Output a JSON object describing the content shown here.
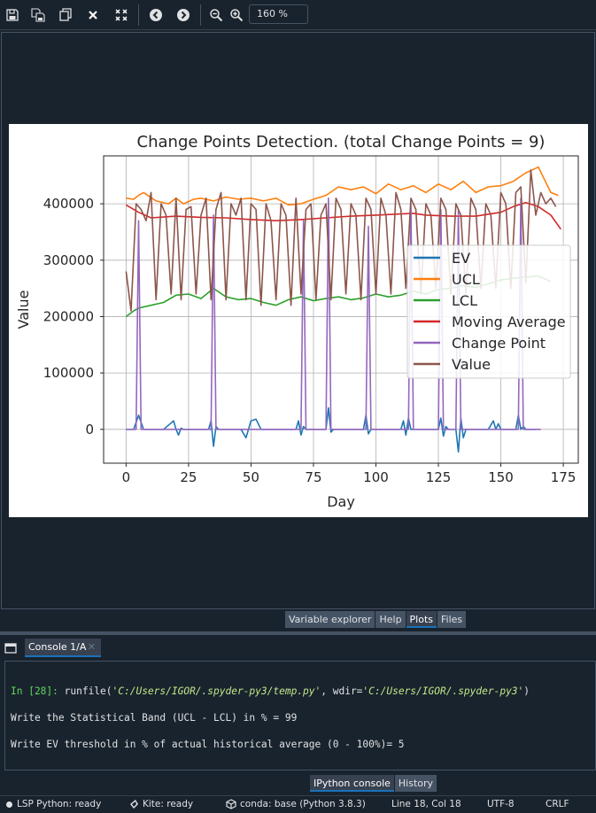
{
  "toolbar": {
    "buttons": [
      "save-icon",
      "save-all-icon",
      "copy-icon",
      "close-icon",
      "close-all-icon",
      "back-icon",
      "forward-icon",
      "zoom-out-icon",
      "zoom-in-icon"
    ],
    "zoom": "160 %"
  },
  "chart_data": {
    "type": "line",
    "title": "Change Points Detection. (total Change Points = 9)",
    "xlabel": "Day",
    "ylabel": "Value",
    "xlim": [
      -9,
      181
    ],
    "ylim": [
      -60000,
      485000
    ],
    "xticks": [
      0,
      25,
      50,
      75,
      100,
      125,
      150,
      175
    ],
    "yticks": [
      0,
      100000,
      200000,
      300000,
      400000
    ],
    "ytick_labels": [
      "0",
      "100000",
      "200000",
      "300000",
      "400000"
    ],
    "grid": true,
    "legend_position": "right",
    "series": [
      {
        "name": "EV",
        "color": "#1f77b4",
        "x": [
          0,
          3,
          5,
          7,
          9,
          15,
          19,
          20,
          21,
          22,
          23,
          25,
          33,
          34,
          35,
          36,
          37,
          38,
          46,
          48,
          50,
          52,
          54,
          56,
          68,
          69,
          70,
          71,
          72,
          80,
          81,
          82,
          83,
          84,
          88,
          95,
          96,
          97,
          98,
          99,
          110,
          111,
          112,
          113,
          114,
          115,
          125,
          126,
          127,
          128,
          129,
          132,
          133,
          134,
          135,
          136,
          145,
          147,
          148,
          149,
          150,
          156,
          157,
          158,
          159,
          160,
          164
        ],
        "y": [
          0,
          0,
          25000,
          0,
          0,
          0,
          15000,
          0,
          -10000,
          2000,
          0,
          0,
          0,
          15000,
          -30000,
          5000,
          0,
          0,
          0,
          -15000,
          15000,
          18000,
          0,
          0,
          0,
          15000,
          -10000,
          5000,
          0,
          0,
          38000,
          -5000,
          0,
          0,
          0,
          0,
          25000,
          -8000,
          0,
          0,
          0,
          15000,
          -10000,
          20000,
          0,
          0,
          0,
          20000,
          -12000,
          5000,
          0,
          0,
          -40000,
          20000,
          -15000,
          0,
          0,
          15000,
          0,
          10000,
          0,
          0,
          25000,
          0,
          5000,
          0,
          0
        ]
      },
      {
        "name": "UCL",
        "color": "#ff7f0e",
        "x": [
          0,
          3,
          5,
          7,
          12,
          17,
          20,
          23,
          27,
          30,
          35,
          40,
          45,
          50,
          55,
          60,
          65,
          70,
          75,
          80,
          85,
          90,
          95,
          100,
          105,
          110,
          115,
          120,
          125,
          130,
          135,
          140,
          145,
          150,
          155,
          160,
          165,
          170,
          173
        ],
        "y": [
          410000,
          408000,
          415000,
          420000,
          405000,
          400000,
          410000,
          400000,
          408000,
          410000,
          405000,
          412000,
          408000,
          410000,
          405000,
          410000,
          398000,
          400000,
          408000,
          415000,
          430000,
          425000,
          430000,
          418000,
          435000,
          425000,
          432000,
          420000,
          435000,
          425000,
          440000,
          420000,
          430000,
          432000,
          440000,
          455000,
          465000,
          420000,
          415000
        ]
      },
      {
        "name": "LCL",
        "color": "#2ca02c",
        "x": [
          0,
          3,
          5,
          10,
          15,
          20,
          25,
          30,
          35,
          40,
          45,
          50,
          55,
          60,
          65,
          70,
          75,
          80,
          85,
          90,
          95,
          100,
          105,
          110,
          115,
          120,
          125,
          130,
          135,
          140,
          145,
          150,
          155,
          160,
          165,
          170
        ],
        "y": [
          200000,
          210000,
          215000,
          220000,
          225000,
          238000,
          240000,
          232000,
          250000,
          235000,
          230000,
          232000,
          225000,
          220000,
          230000,
          235000,
          228000,
          232000,
          235000,
          230000,
          233000,
          240000,
          235000,
          238000,
          245000,
          240000,
          248000,
          250000,
          255000,
          252000,
          258000,
          265000,
          268000,
          270000,
          272000,
          262000
        ]
      },
      {
        "name": "Moving Average",
        "color": "#d62728",
        "x": [
          0,
          5,
          10,
          20,
          30,
          40,
          50,
          60,
          70,
          80,
          90,
          100,
          110,
          115,
          120,
          130,
          140,
          150,
          155,
          160,
          165,
          170,
          174
        ],
        "y": [
          398000,
          385000,
          375000,
          378000,
          376000,
          375000,
          372000,
          370000,
          372000,
          375000,
          378000,
          380000,
          382000,
          383000,
          380000,
          378000,
          378000,
          385000,
          395000,
          402000,
          395000,
          380000,
          355000
        ]
      },
      {
        "name": "Change Point",
        "color": "#9467bd",
        "x": [
          0,
          4,
          5,
          6,
          34,
          35,
          36,
          70,
          71,
          72,
          80,
          81,
          82,
          96,
          97,
          98,
          113,
          114,
          115,
          125,
          126,
          127,
          132,
          133,
          134,
          157,
          158,
          159,
          166
        ],
        "y": [
          0,
          0,
          370000,
          0,
          0,
          380000,
          0,
          0,
          370000,
          0,
          0,
          410000,
          0,
          0,
          360000,
          0,
          0,
          400000,
          0,
          0,
          390000,
          0,
          0,
          390000,
          0,
          0,
          410000,
          0,
          0
        ]
      },
      {
        "name": "Value",
        "color": "#8c564b",
        "x": [
          0,
          2,
          4,
          6,
          8,
          10,
          12,
          14,
          16,
          18,
          20,
          22,
          24,
          26,
          28,
          30,
          32,
          34,
          36,
          38,
          40,
          42,
          44,
          46,
          48,
          50,
          52,
          54,
          56,
          58,
          60,
          62,
          64,
          66,
          68,
          70,
          72,
          74,
          76,
          78,
          80,
          82,
          84,
          86,
          88,
          90,
          92,
          94,
          96,
          98,
          100,
          102,
          104,
          106,
          108,
          110,
          112,
          114,
          116,
          118,
          120,
          122,
          124,
          126,
          128,
          130,
          132,
          134,
          136,
          138,
          140,
          142,
          144,
          146,
          148,
          150,
          152,
          154,
          156,
          158,
          160,
          162,
          164,
          166,
          168,
          170,
          172
        ],
        "y": [
          280000,
          210000,
          400000,
          390000,
          370000,
          420000,
          230000,
          400000,
          380000,
          240000,
          410000,
          230000,
          390000,
          395000,
          240000,
          380000,
          410000,
          230000,
          390000,
          420000,
          230000,
          400000,
          380000,
          410000,
          230000,
          400000,
          390000,
          220000,
          400000,
          370000,
          230000,
          400000,
          380000,
          220000,
          410000,
          240000,
          390000,
          400000,
          230000,
          380000,
          400000,
          230000,
          410000,
          390000,
          240000,
          400000,
          380000,
          230000,
          410000,
          390000,
          240000,
          410000,
          380000,
          240000,
          420000,
          390000,
          250000,
          410000,
          390000,
          240000,
          400000,
          380000,
          250000,
          410000,
          390000,
          240000,
          400000,
          380000,
          240000,
          410000,
          390000,
          250000,
          400000,
          380000,
          250000,
          420000,
          400000,
          250000,
          420000,
          430000,
          260000,
          460000,
          380000,
          420000,
          400000,
          410000,
          395000
        ]
      }
    ]
  },
  "plots_tabs": [
    {
      "label": "Variable explorer",
      "active": false
    },
    {
      "label": "Help",
      "active": false
    },
    {
      "label": "Plots",
      "active": true
    },
    {
      "label": "Files",
      "active": false
    }
  ],
  "console": {
    "tab_label": "Console 1/A",
    "prompt": "In [28]:",
    "cmd_fn": " runfile(",
    "cmd_arg1": "'C:/Users/IGOR/.spyder-py3/temp.py'",
    "cmd_mid": ", wdir=",
    "cmd_arg2": "'C:/Users/IGOR/.spyder-py3'",
    "cmd_end": ")",
    "line2": "Write the Statistical Band (UCL - LCL) in % = 99",
    "line3": "Write EV threshold in % of actual historical average (0 - 100%)= 5"
  },
  "console_tabs": [
    {
      "label": "IPython console",
      "active": true
    },
    {
      "label": "History",
      "active": false
    }
  ],
  "statusbar": {
    "lsp": "LSP Python: ready",
    "kite": "Kite: ready",
    "conda": "conda: base (Python 3.8.3)",
    "cursor": "Line 18, Col 18",
    "encoding": "UTF-8",
    "eol": "CRLF"
  }
}
